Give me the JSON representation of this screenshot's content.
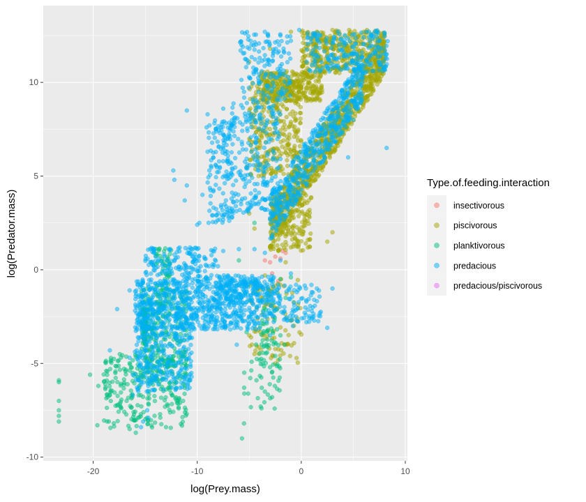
{
  "chart_data": {
    "type": "scatter",
    "title": "",
    "xlabel": "log(Prey.mass)",
    "ylabel": "log(Predator.mass)",
    "xlim": [
      -24.8,
      10.2
    ],
    "ylim": [
      -10.2,
      14.1
    ],
    "x_ticks": [
      -20,
      -10,
      0,
      10
    ],
    "y_ticks": [
      -10,
      -5,
      0,
      5,
      10
    ],
    "x_tick_labels": [
      "-20",
      "-10",
      "0",
      "10"
    ],
    "y_tick_labels": [
      "-10",
      "-5",
      "0",
      "5",
      "10"
    ],
    "grid": true,
    "point_opacity": 0.5,
    "legend": {
      "title": "Type.of.feeding.interaction",
      "placement": "right"
    },
    "series": [
      {
        "name": "insectivorous",
        "color": "#F8766D",
        "points": [
          [
            -3.5,
            0.5
          ],
          [
            -2.5,
            0.7
          ],
          [
            -2.0,
            0.6
          ],
          [
            -1.5,
            0.9
          ],
          [
            -2.2,
            -0.6
          ],
          [
            -0.5,
            4.0
          ],
          [
            -0.6,
            3.6
          ],
          [
            -3.0,
            0.4
          ],
          [
            -1.8,
            1.0
          ],
          [
            -2.8,
            -0.2
          ]
        ]
      },
      {
        "name": "piscivorous",
        "color": "#A3A500",
        "clusters": [
          {
            "n": 900,
            "x": [
              -3,
              8
            ],
            "y": [
              1,
              12.8
            ],
            "corr": 0.8
          },
          {
            "n": 380,
            "x": [
              0,
              8
            ],
            "y": [
              10.5,
              12.8
            ]
          },
          {
            "n": 300,
            "x": [
              -4,
              2
            ],
            "y": [
              9,
              10.6
            ]
          },
          {
            "n": 300,
            "x": [
              -5,
              0
            ],
            "y": [
              5,
              10
            ]
          },
          {
            "n": 150,
            "x": [
              -3,
              1
            ],
            "y": [
              1,
              4
            ]
          },
          {
            "n": 100,
            "x": [
              -5,
              0
            ],
            "y": [
              -5,
              -0.5
            ]
          }
        ],
        "points": [
          [
            -5.0,
            11.1
          ],
          [
            -3.0,
            11.8
          ],
          [
            -1.0,
            12.7
          ],
          [
            1.5,
            12.7
          ],
          [
            3.0,
            12.8
          ],
          [
            6.0,
            12.7
          ],
          [
            8.0,
            12.5
          ],
          [
            2.5,
            1.5
          ],
          [
            3.0,
            2.0
          ],
          [
            -5.0,
            -3.5
          ],
          [
            -4.5,
            -4.5
          ],
          [
            -2.5,
            -5.0
          ],
          [
            -3.5,
            -0.3
          ],
          [
            -2.0,
            -0.8
          ],
          [
            -4.0,
            9.9
          ],
          [
            -5.2,
            5.5
          ],
          [
            -5.0,
            3.0
          ],
          [
            -4.5,
            2.2
          ],
          [
            -3.0,
            1.2
          ],
          [
            -1.5,
            0.4
          ]
        ]
      },
      {
        "name": "planktivorous",
        "color": "#00BF7D",
        "clusters": [
          {
            "n": 260,
            "x": [
              -19,
              -11
            ],
            "y": [
              -8.5,
              -4.5
            ]
          },
          {
            "n": 220,
            "x": [
              -15.5,
              -11
            ],
            "y": [
              -6,
              -1
            ]
          },
          {
            "n": 60,
            "x": [
              -15.3,
              -14.8
            ],
            "y": [
              -4,
              -2
            ]
          },
          {
            "n": 60,
            "x": [
              -14,
              -12.5
            ],
            "y": [
              -2,
              1.2
            ]
          },
          {
            "n": 40,
            "x": [
              -5.5,
              -2
            ],
            "y": [
              -7.5,
              -3
            ]
          },
          {
            "n": 40,
            "x": [
              -4,
              -2
            ],
            "y": [
              -5.5,
              -2
            ]
          }
        ],
        "points": [
          [
            -23.3,
            -5.9
          ],
          [
            -23.3,
            -6.0
          ],
          [
            -23.3,
            -7.0
          ],
          [
            -23.3,
            -7.5
          ],
          [
            -23.3,
            -7.8
          ],
          [
            -23.3,
            -8.1
          ],
          [
            -20.3,
            -5.6
          ],
          [
            -19.5,
            -6.2
          ],
          [
            -19.6,
            -8.3
          ],
          [
            -18.5,
            -8.1
          ],
          [
            -16.5,
            -8.5
          ],
          [
            -15.9,
            -8.7
          ],
          [
            -15.7,
            -7.9
          ],
          [
            -13.0,
            -8.4
          ],
          [
            -12.5,
            -6.6
          ],
          [
            -12.0,
            -6.0
          ],
          [
            -11.2,
            -6.3
          ],
          [
            -10.8,
            -5.9
          ],
          [
            -5.5,
            -8.2
          ],
          [
            -5.7,
            -9.0
          ],
          [
            -3.5,
            -6.5
          ],
          [
            -3.0,
            -5.2
          ],
          [
            -2.5,
            -4.6
          ],
          [
            -2.0,
            -3.5
          ],
          [
            -3.8,
            -6.3
          ],
          [
            -4.3,
            -5.9
          ],
          [
            -1.6,
            -4.0
          ],
          [
            -2.8,
            -6.8
          ],
          [
            -3.9,
            -7.3
          ],
          [
            -1.0,
            -0.4
          ],
          [
            -2.0,
            -0.5
          ],
          [
            -2.7,
            -1.8
          ],
          [
            -3.2,
            -3.2
          ],
          [
            -1.5,
            -1.5
          ],
          [
            -4.5,
            2.5
          ],
          [
            -6.0,
            0.5
          ],
          [
            -13.7,
            1.1
          ],
          [
            -12.8,
            0.6
          ],
          [
            -13.1,
            -0.5
          ],
          [
            -12.9,
            -1.0
          ]
        ]
      },
      {
        "name": "predacious",
        "color": "#00B0F6",
        "clusters": [
          {
            "n": 520,
            "x": [
              -3,
              6
            ],
            "y": [
              1.5,
              11.5
            ],
            "corr": 0.75
          },
          {
            "n": 220,
            "x": [
              0.5,
              8.3
            ],
            "y": [
              10.5,
              12.8
            ]
          },
          {
            "n": 150,
            "x": [
              -6,
              -1
            ],
            "y": [
              9,
              12.7
            ]
          },
          {
            "n": 250,
            "x": [
              -7,
              -2
            ],
            "y": [
              3,
              9
            ]
          },
          {
            "n": 140,
            "x": [
              -9,
              -6.5
            ],
            "y": [
              2.5,
              8
            ]
          },
          {
            "n": 700,
            "x": [
              -16,
              -4
            ],
            "y": [
              -3.2,
              -0.5
            ]
          },
          {
            "n": 320,
            "x": [
              -16,
              -10.5
            ],
            "y": [
              -6.5,
              -2
            ]
          },
          {
            "n": 150,
            "x": [
              -15,
              -8
            ],
            "y": [
              -0.5,
              1.2
            ]
          },
          {
            "n": 150,
            "x": [
              -8,
              -2.5
            ],
            "y": [
              -1.8,
              -0.3
            ]
          },
          {
            "n": 120,
            "x": [
              -4,
              2
            ],
            "y": [
              -2.8,
              -0.8
            ]
          }
        ],
        "points": [
          [
            -11.0,
            8.5
          ],
          [
            -9.0,
            8.3
          ],
          [
            -9.0,
            6.3
          ],
          [
            -9.1,
            7.6
          ],
          [
            -7.5,
            8.6
          ],
          [
            -9.5,
            4.0
          ],
          [
            -9.8,
            2.5
          ],
          [
            -10.0,
            2.4
          ],
          [
            -11.2,
            3.7
          ],
          [
            -11.0,
            4.5
          ],
          [
            -12.2,
            4.8
          ],
          [
            -12.3,
            5.3
          ],
          [
            -7.5,
            1.0
          ],
          [
            -4.8,
            12.0
          ],
          [
            -3.5,
            12.7
          ],
          [
            -2.0,
            12.5
          ],
          [
            -1.7,
            11.8
          ],
          [
            -0.2,
            12.8
          ],
          [
            -5.5,
            9.5
          ],
          [
            -3.8,
            10.6
          ],
          [
            -4.0,
            11.3
          ],
          [
            -17.7,
            -2.1
          ],
          [
            -16.5,
            -1.1
          ],
          [
            -18.4,
            -4.3
          ],
          [
            -16.5,
            -4.7
          ],
          [
            -16.2,
            -5.6
          ],
          [
            -16.2,
            -6.7
          ],
          [
            -14.7,
            -7.9
          ],
          [
            -15.2,
            -8.1
          ],
          [
            -15.4,
            -8.4
          ],
          [
            -14.8,
            -7.5
          ],
          [
            -12.0,
            -6.3
          ],
          [
            -12.5,
            -5.4
          ],
          [
            -14.5,
            1.1
          ],
          [
            -14.2,
            0.2
          ],
          [
            -13.0,
            -0.2
          ],
          [
            -10.0,
            1.1
          ],
          [
            -8.5,
            1.0
          ],
          [
            -6.0,
            1.1
          ],
          [
            -4.5,
            1.1
          ],
          [
            -3.5,
            0.9
          ],
          [
            -2.0,
            0.5
          ],
          [
            -1.0,
            -0.2
          ],
          [
            -0.5,
            -0.8
          ],
          [
            0.5,
            -1.7
          ],
          [
            1.0,
            -2.2
          ],
          [
            1.5,
            -1.0
          ],
          [
            2.5,
            -3.1
          ],
          [
            3.0,
            -1.0
          ],
          [
            0.5,
            -2.8
          ],
          [
            -0.5,
            -2.5
          ],
          [
            -0.8,
            -3.0
          ],
          [
            8.2,
            6.5
          ],
          [
            8.0,
            12.6
          ],
          [
            8.3,
            12.2
          ],
          [
            4.5,
            6.0
          ],
          [
            5.0,
            8.0
          ],
          [
            -6.2,
            -4.0
          ],
          [
            -4.5,
            -3.0
          ],
          [
            -3.5,
            -2.5
          ],
          [
            -3.0,
            -3.5
          ]
        ]
      },
      {
        "name": "predacious/piscivorous",
        "color": "#E76BF3",
        "points": []
      }
    ]
  }
}
